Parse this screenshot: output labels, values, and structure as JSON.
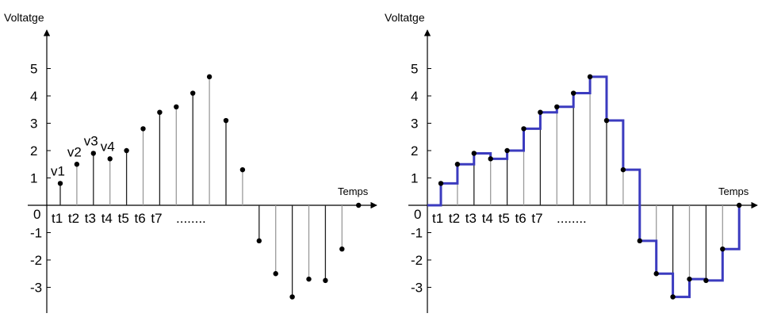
{
  "chart_data": [
    {
      "type": "stem",
      "ylabel": "Voltatge",
      "xlabel": "Temps",
      "origin_label": "0",
      "y_ticks": [
        5,
        4,
        3,
        2,
        1,
        -1,
        -2,
        -3
      ],
      "y_tick_labels": [
        "5",
        "4",
        "3",
        "2",
        "1",
        "-1",
        "-2",
        "-3"
      ],
      "time_labels": [
        "t1",
        "t2",
        "t3",
        "t4",
        "t5",
        "t6",
        "t7"
      ],
      "ellipsis": "........",
      "value_labels": [
        "v1",
        "v2",
        "v3",
        "v4"
      ],
      "samples": [
        0.8,
        1.5,
        1.9,
        1.7,
        2.0,
        2.8,
        3.4,
        3.6,
        4.1,
        4.7,
        3.1,
        1.3,
        -1.3,
        -2.5,
        -3.35,
        -2.7,
        -2.75,
        -1.6,
        0.0
      ],
      "ylim": [
        -3.5,
        6.2
      ]
    },
    {
      "type": "stem",
      "ylabel": "Voltatge",
      "xlabel": "Temps",
      "origin_label": "0",
      "y_ticks": [
        5,
        4,
        3,
        2,
        1,
        -1,
        -2,
        -3
      ],
      "y_tick_labels": [
        "5",
        "4",
        "3",
        "2",
        "1",
        "-1",
        "-2",
        "-3"
      ],
      "time_labels": [
        "t1",
        "t2",
        "t3",
        "t4",
        "t5",
        "t6",
        "t7"
      ],
      "ellipsis": "........",
      "samples": [
        0.8,
        1.5,
        1.9,
        1.7,
        2.0,
        2.8,
        3.4,
        3.6,
        4.1,
        4.7,
        3.1,
        1.3,
        -1.3,
        -2.5,
        -3.35,
        -2.7,
        -2.75,
        -1.6,
        0.0
      ],
      "hold_line": "zero-order hold",
      "colors": {
        "hold": "#3b3bbf",
        "stem": "#000000",
        "dot": "#000000"
      },
      "ylim": [
        -3.5,
        6.2
      ]
    }
  ]
}
